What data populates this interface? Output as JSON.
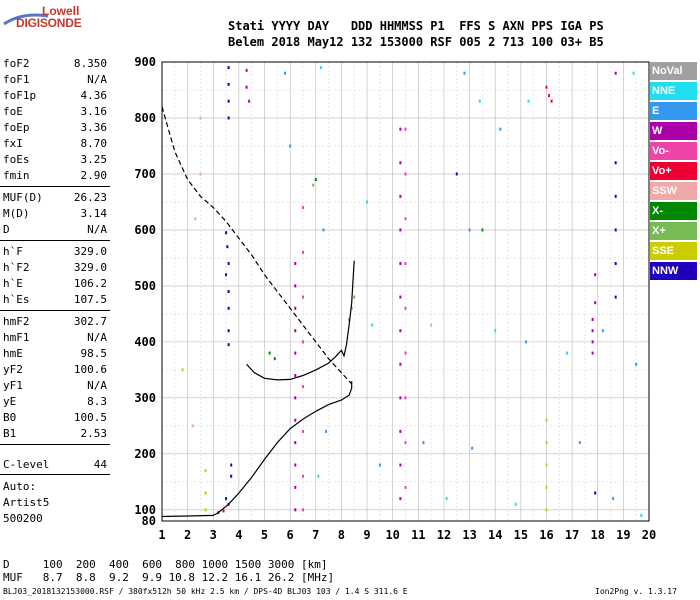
{
  "logo": {
    "line1": "Lowell",
    "line2": "DIGISONDE"
  },
  "header": {
    "row1": "Stati YYYY DAY   DDD HHMMSS P1  FFS S AXN PPS IGA PS",
    "row2": "Belem 2018 May12 132 153000 RSF 005 2 713 100 03+ B5"
  },
  "params_group1": [
    {
      "name": "foF2",
      "value": "8.350"
    },
    {
      "name": "foF1",
      "value": "N/A"
    },
    {
      "name": "foF1p",
      "value": "4.36"
    },
    {
      "name": "foE",
      "value": "3.16"
    },
    {
      "name": "foEp",
      "value": "3.36"
    },
    {
      "name": "fxI",
      "value": "8.70"
    },
    {
      "name": "foEs",
      "value": "3.25"
    },
    {
      "name": "fmin",
      "value": "2.90"
    }
  ],
  "params_group2": [
    {
      "name": "MUF(D)",
      "value": "26.23"
    },
    {
      "name": "M(D)",
      "value": "3.14"
    },
    {
      "name": "D",
      "value": "N/A"
    }
  ],
  "params_group3": [
    {
      "name": "h`F",
      "value": "329.0"
    },
    {
      "name": "h`F2",
      "value": "329.0"
    },
    {
      "name": "h`E",
      "value": "106.2"
    },
    {
      "name": "h`Es",
      "value": "107.5"
    }
  ],
  "params_group4": [
    {
      "name": "hmF2",
      "value": "302.7"
    },
    {
      "name": "hmF1",
      "value": "N/A"
    },
    {
      "name": "hmE",
      "value": "98.5"
    },
    {
      "name": "yF2",
      "value": "100.6"
    },
    {
      "name": "yF1",
      "value": "N/A"
    },
    {
      "name": "yE",
      "value": "8.3"
    },
    {
      "name": "B0",
      "value": "100.5"
    },
    {
      "name": "B1",
      "value": "2.53"
    }
  ],
  "clevel": {
    "name": "C-level",
    "value": "44"
  },
  "auto": {
    "line1": "Auto:",
    "line2": "Artist5",
    "line3": "500200"
  },
  "muf_table": {
    "d_row": "D     100  200  400  600  800 1000 1500 3000 [km]",
    "muf_row": "MUF   8.7  8.8  9.2  9.9 10.8 12.2 16.1 26.2 [MHz]"
  },
  "bottom": {
    "left": "BLJ03_2018132153000.RSF / 380fx512h 50 kHz 2.5 km / DPS-4D BLJ03 103 / 1.4 S 311.6 E",
    "right": "Ion2Png v. 1.3.17"
  },
  "legend": [
    {
      "label": "NoVal",
      "color": "#a0a0a0"
    },
    {
      "label": "NNE",
      "color": "#22ddee"
    },
    {
      "label": "E",
      "color": "#3399ee"
    },
    {
      "label": "W",
      "color": "#aa00aa"
    },
    {
      "label": "Vo-",
      "color": "#ee44aa"
    },
    {
      "label": "Vo+",
      "color": "#ee0033"
    },
    {
      "label": "SSW",
      "color": "#f0a8a8"
    },
    {
      "label": "X-",
      "color": "#008800"
    },
    {
      "label": "X+",
      "color": "#77bb55"
    },
    {
      "label": "SSE",
      "color": "#cccc00"
    },
    {
      "label": "NNW",
      "color": "#2200bb"
    }
  ],
  "chart_data": {
    "type": "scatter",
    "x_ticks": [
      1,
      2,
      3,
      4,
      5,
      6,
      7,
      8,
      9,
      10,
      11,
      12,
      13,
      14,
      15,
      16,
      17,
      18,
      19,
      20
    ],
    "y_ticks": [
      80,
      100,
      200,
      300,
      400,
      500,
      600,
      700,
      800,
      900
    ],
    "xlim": [
      1,
      20
    ],
    "ylim": [
      80,
      900
    ],
    "xlabel": "",
    "ylabel": "",
    "grid": true,
    "legend_position": "right",
    "lines": [
      {
        "style": "solid",
        "desc": "profile",
        "x": [
          1.0,
          2.0,
          3.0,
          3.2,
          3.6,
          4.0,
          4.5,
          5.0,
          5.5,
          6.0,
          6.5,
          7.0,
          7.5,
          8.0,
          8.3,
          8.4,
          8.4
        ],
        "y": [
          88,
          89,
          90,
          95,
          110,
          130,
          158,
          190,
          220,
          245,
          262,
          276,
          288,
          296,
          305,
          317,
          330
        ]
      },
      {
        "style": "dashed",
        "desc": "extrapolation",
        "x": [
          1.0,
          1.5,
          2.0,
          2.5,
          3.0,
          3.5,
          4.0,
          4.5,
          5.0,
          5.5,
          6.0,
          6.5,
          7.0,
          7.5,
          8.0,
          8.4
        ],
        "y": [
          820,
          740,
          690,
          660,
          640,
          615,
          585,
          555,
          520,
          490,
          460,
          430,
          400,
          370,
          345,
          325
        ]
      },
      {
        "style": "solid",
        "desc": "trace",
        "x": [
          4.3,
          4.6,
          5.0,
          5.5,
          6.0,
          6.5,
          7.0,
          7.5,
          7.8,
          8.0,
          8.1,
          8.2,
          8.3,
          8.4,
          8.45,
          8.5
        ],
        "y": [
          360,
          345,
          335,
          332,
          333,
          340,
          350,
          362,
          375,
          385,
          375,
          395,
          430,
          470,
          510,
          545
        ]
      }
    ],
    "points": [
      {
        "x": 3.6,
        "y": 890,
        "series": "NNW"
      },
      {
        "x": 3.6,
        "y": 860,
        "series": "NNW"
      },
      {
        "x": 3.6,
        "y": 830,
        "series": "NNW"
      },
      {
        "x": 3.6,
        "y": 800,
        "series": "NNW"
      },
      {
        "x": 3.5,
        "y": 595,
        "series": "NNW"
      },
      {
        "x": 3.55,
        "y": 570,
        "series": "NNW"
      },
      {
        "x": 3.6,
        "y": 540,
        "series": "NNW"
      },
      {
        "x": 3.5,
        "y": 520,
        "series": "NNW"
      },
      {
        "x": 3.6,
        "y": 490,
        "series": "NNW"
      },
      {
        "x": 3.6,
        "y": 460,
        "series": "NNW"
      },
      {
        "x": 3.6,
        "y": 420,
        "series": "NNW"
      },
      {
        "x": 3.6,
        "y": 395,
        "series": "NNW"
      },
      {
        "x": 3.7,
        "y": 180,
        "series": "NNW"
      },
      {
        "x": 3.7,
        "y": 160,
        "series": "NNW"
      },
      {
        "x": 3.5,
        "y": 120,
        "series": "NNW"
      },
      {
        "x": 3.6,
        "y": 110,
        "series": "NNW"
      },
      {
        "x": 4.3,
        "y": 885,
        "series": "W"
      },
      {
        "x": 4.3,
        "y": 855,
        "series": "W"
      },
      {
        "x": 4.4,
        "y": 830,
        "series": "W"
      },
      {
        "x": 6.2,
        "y": 540,
        "series": "W"
      },
      {
        "x": 6.2,
        "y": 500,
        "series": "W"
      },
      {
        "x": 6.2,
        "y": 460,
        "series": "W"
      },
      {
        "x": 6.2,
        "y": 420,
        "series": "W"
      },
      {
        "x": 6.2,
        "y": 380,
        "series": "W"
      },
      {
        "x": 6.2,
        "y": 340,
        "series": "W"
      },
      {
        "x": 6.2,
        "y": 300,
        "series": "W"
      },
      {
        "x": 6.2,
        "y": 260,
        "series": "W"
      },
      {
        "x": 6.2,
        "y": 220,
        "series": "W"
      },
      {
        "x": 6.2,
        "y": 180,
        "series": "W"
      },
      {
        "x": 6.2,
        "y": 140,
        "series": "W"
      },
      {
        "x": 6.2,
        "y": 100,
        "series": "W"
      },
      {
        "x": 6.5,
        "y": 640,
        "series": "Vo-"
      },
      {
        "x": 6.5,
        "y": 560,
        "series": "Vo-"
      },
      {
        "x": 6.5,
        "y": 480,
        "series": "Vo-"
      },
      {
        "x": 6.5,
        "y": 400,
        "series": "Vo-"
      },
      {
        "x": 6.5,
        "y": 320,
        "series": "Vo-"
      },
      {
        "x": 6.5,
        "y": 240,
        "series": "Vo-"
      },
      {
        "x": 6.5,
        "y": 160,
        "series": "Vo-"
      },
      {
        "x": 6.5,
        "y": 100,
        "series": "Vo-"
      },
      {
        "x": 10.3,
        "y": 780,
        "series": "W"
      },
      {
        "x": 10.3,
        "y": 720,
        "series": "W"
      },
      {
        "x": 10.3,
        "y": 660,
        "series": "W"
      },
      {
        "x": 10.3,
        "y": 600,
        "series": "W"
      },
      {
        "x": 10.3,
        "y": 540,
        "series": "W"
      },
      {
        "x": 10.3,
        "y": 480,
        "series": "W"
      },
      {
        "x": 10.3,
        "y": 420,
        "series": "W"
      },
      {
        "x": 10.3,
        "y": 360,
        "series": "W"
      },
      {
        "x": 10.3,
        "y": 300,
        "series": "W"
      },
      {
        "x": 10.3,
        "y": 240,
        "series": "W"
      },
      {
        "x": 10.3,
        "y": 180,
        "series": "W"
      },
      {
        "x": 10.3,
        "y": 120,
        "series": "W"
      },
      {
        "x": 10.5,
        "y": 780,
        "series": "Vo-"
      },
      {
        "x": 10.5,
        "y": 700,
        "series": "Vo-"
      },
      {
        "x": 10.5,
        "y": 620,
        "series": "Vo-"
      },
      {
        "x": 10.5,
        "y": 540,
        "series": "Vo-"
      },
      {
        "x": 10.5,
        "y": 460,
        "series": "Vo-"
      },
      {
        "x": 10.5,
        "y": 380,
        "series": "Vo-"
      },
      {
        "x": 10.5,
        "y": 300,
        "series": "Vo-"
      },
      {
        "x": 10.5,
        "y": 220,
        "series": "Vo-"
      },
      {
        "x": 10.5,
        "y": 140,
        "series": "Vo-"
      },
      {
        "x": 16.1,
        "y": 840,
        "series": "Vo+"
      },
      {
        "x": 16.2,
        "y": 830,
        "series": "Vo+"
      },
      {
        "x": 16.0,
        "y": 855,
        "series": "Vo+"
      },
      {
        "x": 17.8,
        "y": 440,
        "series": "W"
      },
      {
        "x": 17.8,
        "y": 420,
        "series": "W"
      },
      {
        "x": 17.8,
        "y": 400,
        "series": "W"
      },
      {
        "x": 17.8,
        "y": 380,
        "series": "W"
      },
      {
        "x": 17.9,
        "y": 520,
        "series": "W"
      },
      {
        "x": 17.9,
        "y": 470,
        "series": "W"
      },
      {
        "x": 17.9,
        "y": 130,
        "series": "NNW"
      },
      {
        "x": 18.7,
        "y": 720,
        "series": "NNW"
      },
      {
        "x": 18.7,
        "y": 660,
        "series": "NNW"
      },
      {
        "x": 18.7,
        "y": 600,
        "series": "NNW"
      },
      {
        "x": 18.7,
        "y": 540,
        "series": "NNW"
      },
      {
        "x": 18.7,
        "y": 480,
        "series": "NNW"
      },
      {
        "x": 18.7,
        "y": 880,
        "series": "W"
      },
      {
        "x": 16.0,
        "y": 260,
        "series": "SSE"
      },
      {
        "x": 16.0,
        "y": 220,
        "series": "SSE"
      },
      {
        "x": 16.0,
        "y": 180,
        "series": "SSE"
      },
      {
        "x": 16.0,
        "y": 140,
        "series": "SSE"
      },
      {
        "x": 16.0,
        "y": 100,
        "series": "SSE"
      },
      {
        "x": 8.4,
        "y": 460,
        "series": "X+"
      },
      {
        "x": 8.5,
        "y": 480,
        "series": "X+"
      },
      {
        "x": 8.3,
        "y": 440,
        "series": "X+"
      },
      {
        "x": 5.2,
        "y": 380,
        "series": "X-"
      },
      {
        "x": 5.4,
        "y": 370,
        "series": "X-"
      },
      {
        "x": 7.0,
        "y": 690,
        "series": "X-"
      },
      {
        "x": 6.9,
        "y": 680,
        "series": "X+"
      },
      {
        "x": 2.7,
        "y": 170,
        "series": "SSE"
      },
      {
        "x": 2.7,
        "y": 130,
        "series": "SSE"
      },
      {
        "x": 2.7,
        "y": 100,
        "series": "SSE"
      },
      {
        "x": 3.2,
        "y": 95,
        "series": "W"
      },
      {
        "x": 3.4,
        "y": 98,
        "series": "Vo+"
      },
      {
        "x": 2.5,
        "y": 800,
        "series": "SSW"
      },
      {
        "x": 2.5,
        "y": 700,
        "series": "SSW"
      },
      {
        "x": 2.3,
        "y": 620,
        "series": "SSW"
      },
      {
        "x": 5.8,
        "y": 880,
        "series": "E"
      },
      {
        "x": 6.0,
        "y": 750,
        "series": "E"
      },
      {
        "x": 7.2,
        "y": 890,
        "series": "NNE"
      },
      {
        "x": 7.3,
        "y": 600,
        "series": "E"
      },
      {
        "x": 7.4,
        "y": 240,
        "series": "E"
      },
      {
        "x": 7.1,
        "y": 160,
        "series": "NNE"
      },
      {
        "x": 12.8,
        "y": 880,
        "series": "E"
      },
      {
        "x": 13.4,
        "y": 830,
        "series": "NNE"
      },
      {
        "x": 14.2,
        "y": 780,
        "series": "E"
      },
      {
        "x": 15.3,
        "y": 830,
        "series": "NNE"
      },
      {
        "x": 13.0,
        "y": 600,
        "series": "E"
      },
      {
        "x": 14.0,
        "y": 420,
        "series": "NNE"
      },
      {
        "x": 15.2,
        "y": 400,
        "series": "E"
      },
      {
        "x": 16.8,
        "y": 380,
        "series": "NNE"
      },
      {
        "x": 18.2,
        "y": 420,
        "series": "E"
      },
      {
        "x": 19.4,
        "y": 880,
        "series": "NNE"
      },
      {
        "x": 19.5,
        "y": 360,
        "series": "E"
      },
      {
        "x": 11.2,
        "y": 220,
        "series": "E"
      },
      {
        "x": 12.1,
        "y": 120,
        "series": "NNE"
      },
      {
        "x": 13.1,
        "y": 210,
        "series": "E"
      },
      {
        "x": 14.8,
        "y": 110,
        "series": "NNE"
      },
      {
        "x": 17.3,
        "y": 220,
        "series": "E"
      },
      {
        "x": 18.6,
        "y": 120,
        "series": "E"
      },
      {
        "x": 19.7,
        "y": 90,
        "series": "NNE"
      },
      {
        "x": 11.5,
        "y": 430,
        "series": "SSW"
      },
      {
        "x": 12.5,
        "y": 700,
        "series": "NNW"
      },
      {
        "x": 13.5,
        "y": 600,
        "series": "X-"
      },
      {
        "x": 9.2,
        "y": 430,
        "series": "NNE"
      },
      {
        "x": 9.5,
        "y": 180,
        "series": "E"
      },
      {
        "x": 9.0,
        "y": 650,
        "series": "NNE"
      },
      {
        "x": 1.8,
        "y": 350,
        "series": "SSE"
      },
      {
        "x": 2.2,
        "y": 250,
        "series": "SSW"
      }
    ]
  }
}
